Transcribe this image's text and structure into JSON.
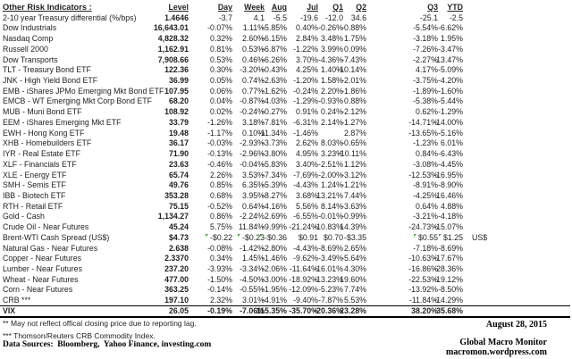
{
  "title": "Other Risk Indicators :",
  "columns": [
    "Level",
    "Day",
    "Week",
    "Aug",
    "Jul",
    "Q1",
    "Q2",
    "Q3",
    "YTD"
  ],
  "rows": [
    {
      "label": "2-10 year Treasury differential (%/bps)",
      "cells": [
        "1.4646",
        "-3.7",
        "4.1",
        "-5.5",
        "-19.6",
        "-12.0",
        "34.6",
        "-25.1",
        "-2.5"
      ]
    },
    {
      "label": "Dow Industrials",
      "cells": [
        "16,643.01",
        "-0.07%",
        "1.11%",
        "-5.85%",
        "0.40%",
        "-0.26%",
        "-0.88%",
        "-5.54%",
        "-6.62%"
      ]
    },
    {
      "label": "Nasdaq Comp",
      "cells": [
        "4,828.32",
        "0.32%",
        "2.60%",
        "-6.15%",
        "2.84%",
        "3.48%",
        "1.75%",
        "-3.18%",
        "1.95%"
      ]
    },
    {
      "label": "Russell 2000",
      "cells": [
        "1,162.91",
        "0.81%",
        "0.53%",
        "-6.87%",
        "-1.22%",
        "3.99%",
        "0.09%",
        "-7.26%",
        "-3.47%"
      ]
    },
    {
      "label": "Dow Transports",
      "cells": [
        "7,908.66",
        "0.53%",
        "0.46%",
        "-6.26%",
        "3.70%",
        "-4.36%",
        "-7.43%",
        "-2.27%",
        "-13.47%"
      ]
    },
    {
      "label": "TLT - Treasury Bond ETF",
      "cells": [
        "122.36",
        "0.30%",
        "-3.20%",
        "-0.43%",
        "4.25%",
        "1.40%",
        "-10.14%",
        "4.17%",
        "-5.09%"
      ]
    },
    {
      "label": "JNK - High Yield Bond ETF",
      "cells": [
        "36.99",
        "0.05%",
        "0.74%",
        "-2.63%",
        "-1.20%",
        "1.58%",
        "-2.01%",
        "-3.75%",
        "-4.20%"
      ]
    },
    {
      "label": "EMB - iShares JPMo Emerging Mkt Bond ETF",
      "cells": [
        "107.95",
        "0.06%",
        "0.77%",
        "-1.62%",
        "-0.24%",
        "2.20%",
        "-1.86%",
        "-1.89%",
        "-1.60%"
      ]
    },
    {
      "label": "EMCB - WT Emerging Mkt Corp Bond ETF",
      "cells": [
        "68.20",
        "0.04%",
        "-0.87%",
        "-4.03%",
        "-1.29%",
        "-0.93%",
        "0.88%",
        "-5.38%",
        "-5.44%"
      ]
    },
    {
      "label": "MUB - Muni Bond ETF",
      "cells": [
        "108.92",
        "0.02%",
        "-0.24%",
        "-0.27%",
        "0.91%",
        "0.24%",
        "-2.12%",
        "0.62%",
        "-1.29%"
      ]
    },
    {
      "label": "EEM - iShares Emerging Mkt ETF",
      "cells": [
        "33.79",
        "-1.26%",
        "3.18%",
        "-7.81%",
        "-6.31%",
        "2.14%",
        "-1.27%",
        "-14.71%",
        "-14.00%"
      ]
    },
    {
      "label": "EWH - Hong Kong ETF",
      "cells": [
        "19.48",
        "-1.17%",
        "0.10%",
        "-11.34%",
        "-1.46%",
        "",
        "2.87%",
        "-13.65%",
        "-5.16%"
      ]
    },
    {
      "label": "XHB - Homebuilders ETF",
      "cells": [
        "36.17",
        "-0.03%",
        "-2.93%",
        "-3.73%",
        "2.62%",
        "8.03%",
        "-0.65%",
        "-1.23%",
        "6.01%"
      ]
    },
    {
      "label": "IYR - Real Estate ETF",
      "cells": [
        "71.90",
        "-0.13%",
        "-2.96%",
        "-3.80%",
        "4.95%",
        "3.23%",
        "-10.11%",
        "0.84%",
        "-6.43%"
      ]
    },
    {
      "label": "XLF - Financials ETF",
      "cells": [
        "23.63",
        "-0.46%",
        "-0.04%",
        "-5.83%",
        "3.40%",
        "-2.51%",
        "1.12%",
        "-3.08%",
        "-4.45%"
      ]
    },
    {
      "label": "XLE - Energy ETF",
      "cells": [
        "65.74",
        "2.26%",
        "3.53%",
        "-7.34%",
        "-7.69%",
        "-2.00%",
        "-3.12%",
        "-12.53%",
        "-16.95%"
      ]
    },
    {
      "label": "SMH - Semis ETF",
      "cells": [
        "49.76",
        "0.85%",
        "6.35%",
        "-5.39%",
        "-4.43%",
        "1.24%",
        "-1.21%",
        "-8.91%",
        "-8.90%"
      ]
    },
    {
      "label": "IBB - Biotech ETF",
      "cells": [
        "353.28",
        "0.68%",
        "3.95%",
        "-8.27%",
        "3.68%",
        "13.21%",
        "7.44%",
        "-4.25%",
        "16.46%"
      ]
    },
    {
      "label": "RTH - Retail ETF",
      "cells": [
        "75.15",
        "-0.52%",
        "0.64%",
        "-4.16%",
        "5.56%",
        "8.14%",
        "-3.63%",
        "0.64%",
        "4.88%"
      ]
    },
    {
      "label": "Gold - Cash",
      "cells": [
        "1,134.27",
        "0.86%",
        "-2.24%",
        "2.69%",
        "-6.55%",
        "-0.01%",
        "-0.99%",
        "-3.21%",
        "-4.18%"
      ]
    },
    {
      "label": "Crude Oil - Near Futures",
      "cells": [
        "45.24",
        "5.75%",
        "11.84%",
        "-9.99%",
        "-21.24%",
        "-10.83%",
        "14.39%",
        "-24.73%",
        "-15.07%"
      ]
    },
    {
      "label": "Brent-WTI Cash Spread (US$)",
      "cells": [
        "$4.73",
        "-$0.22",
        "-$0.23",
        "-$0.36",
        "$0.91",
        "$0.70",
        "-$3.35",
        "$0.55",
        "$1.25"
      ],
      "flags": [
        1,
        2,
        3,
        7,
        8
      ],
      "suffix": "US$"
    },
    {
      "label": "Natural Gas - Near Futures",
      "cells": [
        "2.638",
        "-0.08%",
        "-1.42%",
        "-2.80%",
        "-4.43%",
        "-8.69%",
        "2.65%",
        "-7.18%",
        "-8.69%"
      ]
    },
    {
      "label": "Copper - Near Futures",
      "cells": [
        "2.3370",
        "0.34%",
        "1.45%",
        "-1.46%",
        "-9.62%",
        "-3.49%",
        "-5.64%",
        "-10.63%",
        "-17.67%"
      ]
    },
    {
      "label": "Lumber - Near Futures",
      "cells": [
        "237.20",
        "-3.93%",
        "-3.34%",
        "-2.06%",
        "-11.64%",
        "-16.01%",
        "4.30%",
        "-16.86%",
        "-28.36%"
      ]
    },
    {
      "label": "Wheat - Near Futures",
      "cells": [
        "477.00",
        "-1.50%",
        "-4.50%",
        "-3.00%",
        "-18.92%",
        "-13.23%",
        "19.60%",
        "-22.53%",
        "-19.12%"
      ]
    },
    {
      "label": "Corn - Near Futures",
      "cells": [
        "363.25",
        "-0.14%",
        "-0.55%",
        "-1.95%",
        "-12.09%",
        "-5.23%",
        "7.74%",
        "-13.92%",
        "-8.50%"
      ]
    },
    {
      "label": "CRB ***",
      "cells": [
        "197.10",
        "2.32%",
        "3.01%",
        "-4.91%",
        "-9.40%",
        "-7.87%",
        "5.53%",
        "-11.84%",
        "-14.29%"
      ]
    },
    {
      "label": "VIX",
      "cells": [
        "26.05",
        "-0.19%",
        "-7.06%",
        "115.35%",
        "-35.70%",
        "-20.36%",
        "23.28%",
        "38.20%",
        "35.68%"
      ],
      "bold": true,
      "rule_above": true,
      "rule_below": true
    }
  ],
  "footnotes": [
    "** May not reflect offical closing price due to reporting lag.",
    "*** Thomson/Reuters CRB Commodity Index."
  ],
  "data_sources": "Data Sources:  Bloomberg,  Yahoo Finance, investing.com",
  "date": "August 28, 2015",
  "brand": {
    "name": "Global Macro Monitor",
    "site": "macromon.wordpress.com"
  },
  "colors": {
    "text": "#1f1f1f",
    "flag_green": "#3f9c35",
    "rule": "#000000",
    "background": "#ffffff"
  }
}
